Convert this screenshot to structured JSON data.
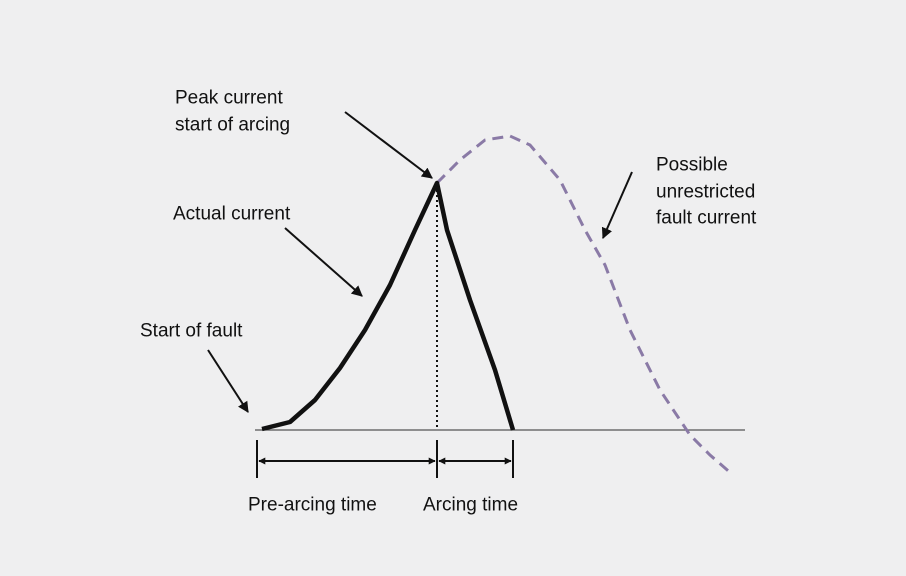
{
  "labels": {
    "peak": [
      "Peak current",
      "start of arcing"
    ],
    "actual": "Actual current",
    "start_fault": "Start of fault",
    "possible": [
      "Possible",
      "unrestricted",
      "fault current"
    ],
    "pre_arcing": "Pre-arcing time",
    "arcing": "Arcing time"
  }
}
